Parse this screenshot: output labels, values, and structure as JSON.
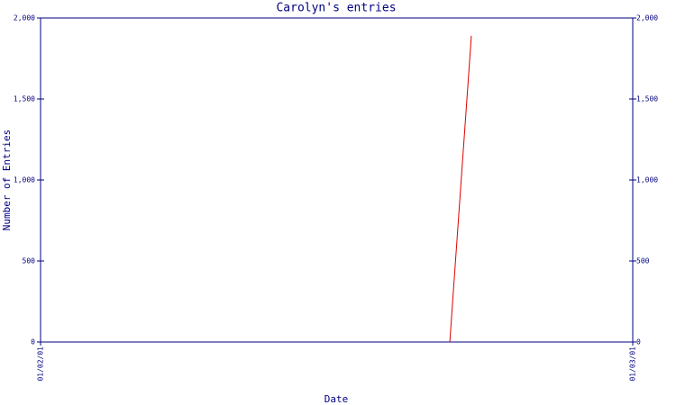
{
  "chart_data": {
    "type": "line",
    "title": "Carolyn's entries",
    "x_label": "Date",
    "y_label": "Number of Entries",
    "x": [
      19.35,
      20.37
    ],
    "series": [
      {
        "name": "Carolyn",
        "color": "#dd0000",
        "values": [
          0,
          1890
        ]
      }
    ],
    "xlim": [
      0,
      28
    ],
    "xticks": [
      {
        "value": 0,
        "label": "01/02/01"
      },
      {
        "value": 28,
        "label": "01/03/01"
      }
    ],
    "ylim": [
      0,
      2000
    ],
    "yticks": [
      0,
      500,
      {
        "value": 1000,
        "label": "1,000"
      },
      {
        "value": 1500,
        "label": "1,500"
      },
      {
        "value": 2000,
        "label": "2,000"
      }
    ],
    "y2lim": [
      0,
      2000
    ],
    "y2ticks": [
      0,
      500,
      {
        "value": 1000,
        "label": "1,000"
      },
      {
        "value": 1500,
        "label": "1,500"
      },
      {
        "value": 2000,
        "label": "2,000"
      }
    ],
    "axis_color": "#000080"
  }
}
